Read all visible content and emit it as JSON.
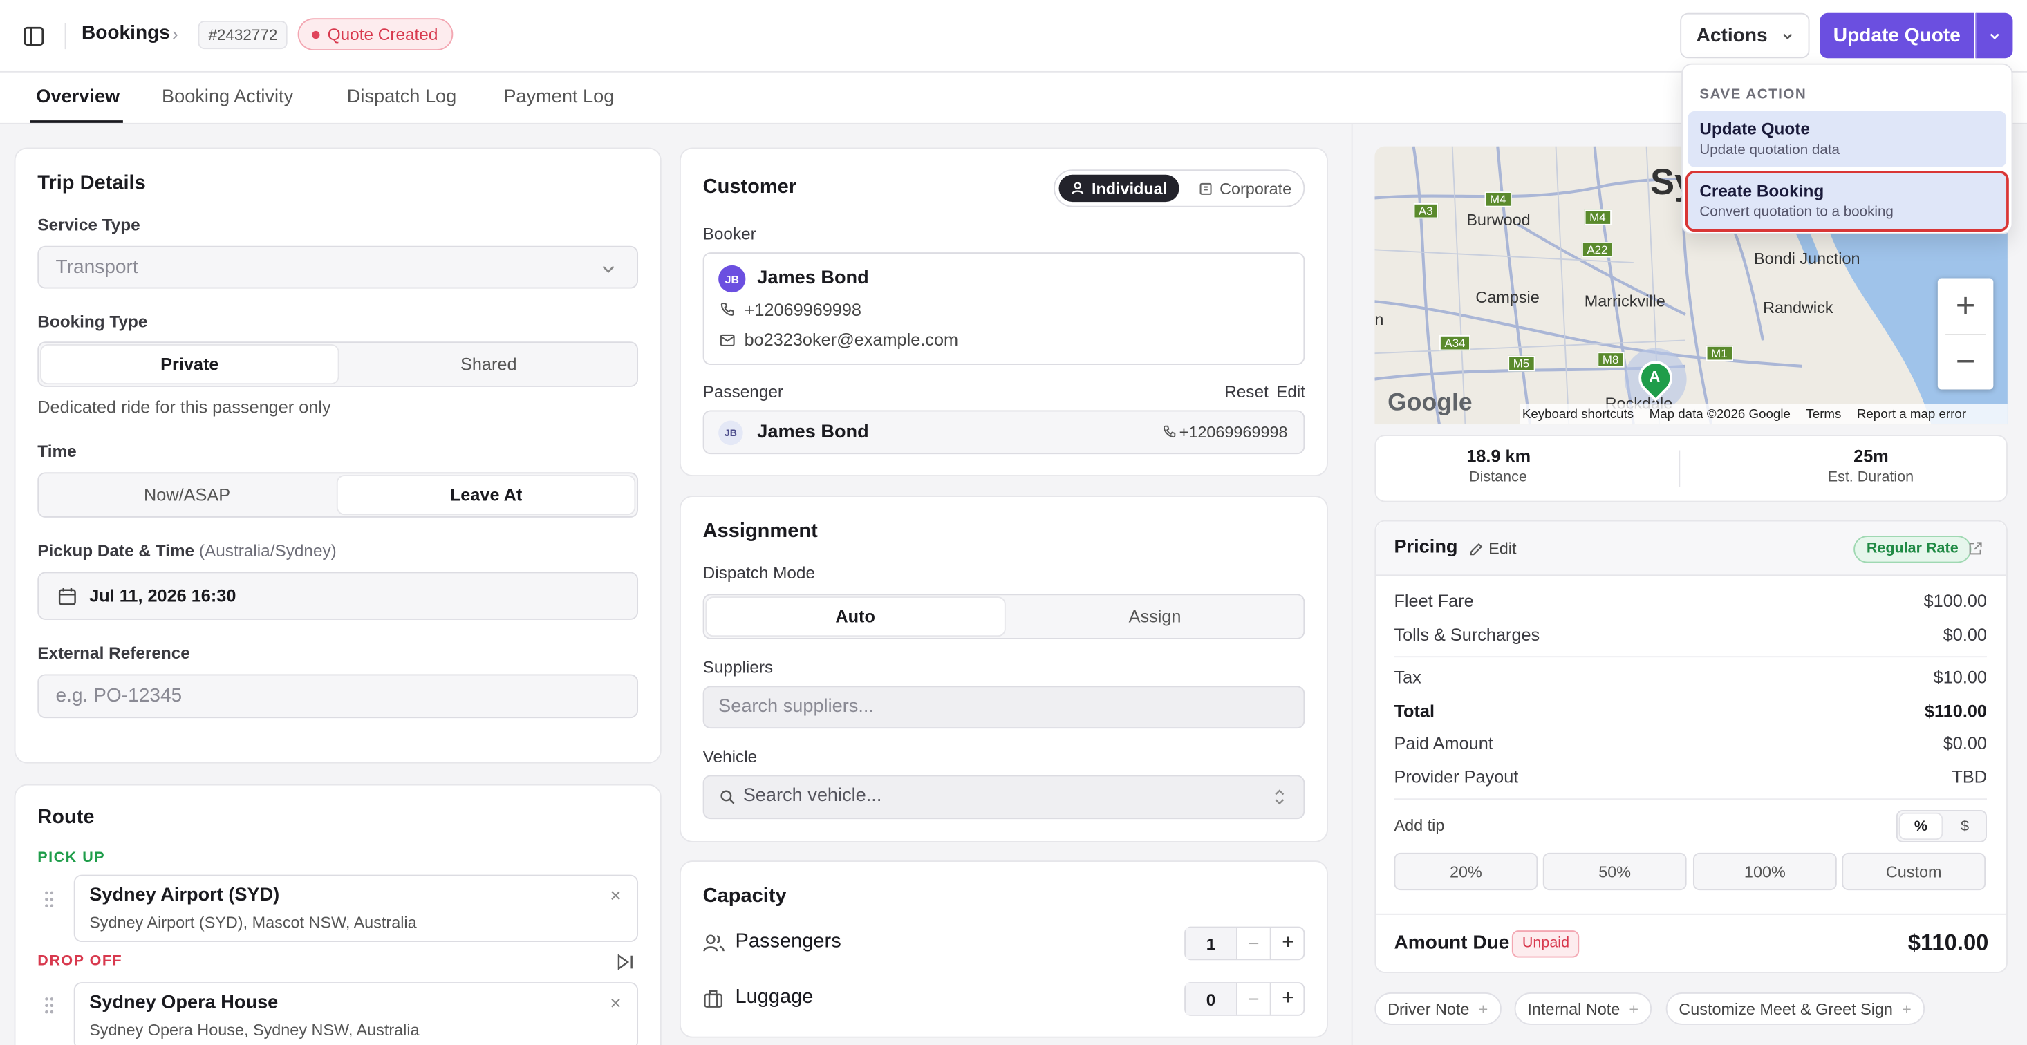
{
  "header": {
    "breadcrumb_title": "Bookings",
    "booking_id": "#2432772",
    "status": "Quote Created",
    "actions_label": "Actions",
    "update_quote_label": "Update Quote"
  },
  "tabs": [
    {
      "label": "Overview"
    },
    {
      "label": "Booking Activity"
    },
    {
      "label": "Dispatch Log"
    },
    {
      "label": "Payment Log"
    }
  ],
  "dropdown": {
    "heading": "SAVE ACTION",
    "items": [
      {
        "title": "Update Quote",
        "subtitle": "Update quotation data"
      },
      {
        "title": "Create Booking",
        "subtitle": "Convert quotation to a booking"
      }
    ]
  },
  "trip": {
    "title": "Trip Details",
    "service_type_label": "Service Type",
    "service_type_value": "Transport",
    "booking_type_label": "Booking Type",
    "booking_type_options": [
      "Private",
      "Shared"
    ],
    "booking_type_hint": "Dedicated ride for this passenger only",
    "time_label": "Time",
    "time_options": [
      "Now/ASAP",
      "Leave At"
    ],
    "pickup_label": "Pickup Date & Time",
    "pickup_tz": "(Australia/Sydney)",
    "pickup_value": "Jul 11, 2026 16:30",
    "ext_ref_label": "External Reference",
    "ext_ref_placeholder": "e.g. PO-12345"
  },
  "route": {
    "title": "Route",
    "pickup_label": "PICK UP",
    "pickup_name": "Sydney Airport (SYD)",
    "pickup_address": "Sydney Airport (SYD), Mascot NSW, Australia",
    "dropoff_label": "DROP OFF",
    "dropoff_name": "Sydney Opera House",
    "dropoff_address": "Sydney Opera House, Sydney NSW, Australia"
  },
  "customer": {
    "title": "Customer",
    "type_options": [
      "Individual",
      "Corporate"
    ],
    "booker_label": "Booker",
    "booker_initials": "JB",
    "booker_name": "James Bond",
    "booker_phone": "+12069969998",
    "booker_email": "bo2323oker@example.com",
    "passenger_label": "Passenger",
    "reset_label": "Reset",
    "edit_label": "Edit",
    "passenger_initials": "JB",
    "passenger_name": "James Bond",
    "passenger_phone": "+12069969998"
  },
  "assignment": {
    "title": "Assignment",
    "dispatch_mode_label": "Dispatch Mode",
    "dispatch_options": [
      "Auto",
      "Assign"
    ],
    "suppliers_label": "Suppliers",
    "suppliers_placeholder": "Search suppliers...",
    "vehicle_label": "Vehicle",
    "vehicle_placeholder": "Search vehicle..."
  },
  "capacity": {
    "title": "Capacity",
    "passengers_label": "Passengers",
    "passengers_value": "1",
    "luggage_label": "Luggage",
    "luggage_value": "0"
  },
  "map": {
    "labels": [
      "Sy",
      "Burwood",
      "Bondi Junction",
      "Campsie",
      "Marrickville",
      "Randwick",
      "n",
      "Rockdale"
    ],
    "roads": [
      "A3",
      "M4",
      "M4",
      "A22",
      "A34",
      "M5",
      "M8",
      "M1"
    ],
    "marker": "A",
    "google": "Google",
    "footer": [
      "Keyboard shortcuts",
      "Map data ©2026 Google",
      "Terms",
      "Report a map error"
    ],
    "zoom_in": "+",
    "zoom_out": "−"
  },
  "trip_stats": {
    "distance_value": "18.9 km",
    "distance_label": "Distance",
    "duration_value": "25m",
    "duration_label": "Est. Duration"
  },
  "pricing": {
    "title": "Pricing",
    "edit_label": "Edit",
    "rate_badge": "Regular Rate",
    "rows": [
      {
        "label": "Fleet Fare",
        "value": "$100.00"
      },
      {
        "label": "Tolls & Surcharges",
        "value": "$0.00"
      },
      {
        "label": "Tax",
        "value": "$10.00"
      },
      {
        "label": "Total",
        "value": "$110.00"
      },
      {
        "label": "Paid Amount",
        "value": "$0.00"
      },
      {
        "label": "Provider Payout",
        "value": "TBD"
      }
    ],
    "add_tip_label": "Add tip",
    "tip_modes": [
      "%",
      "$"
    ],
    "tip_options": [
      "20%",
      "50%",
      "100%",
      "Custom"
    ],
    "amount_due_label": "Amount Due",
    "amount_due_status": "Unpaid",
    "amount_due_value": "$110.00"
  },
  "notes": [
    "Driver Note",
    "Internal Note",
    "Customize Meet & Greet Sign"
  ]
}
